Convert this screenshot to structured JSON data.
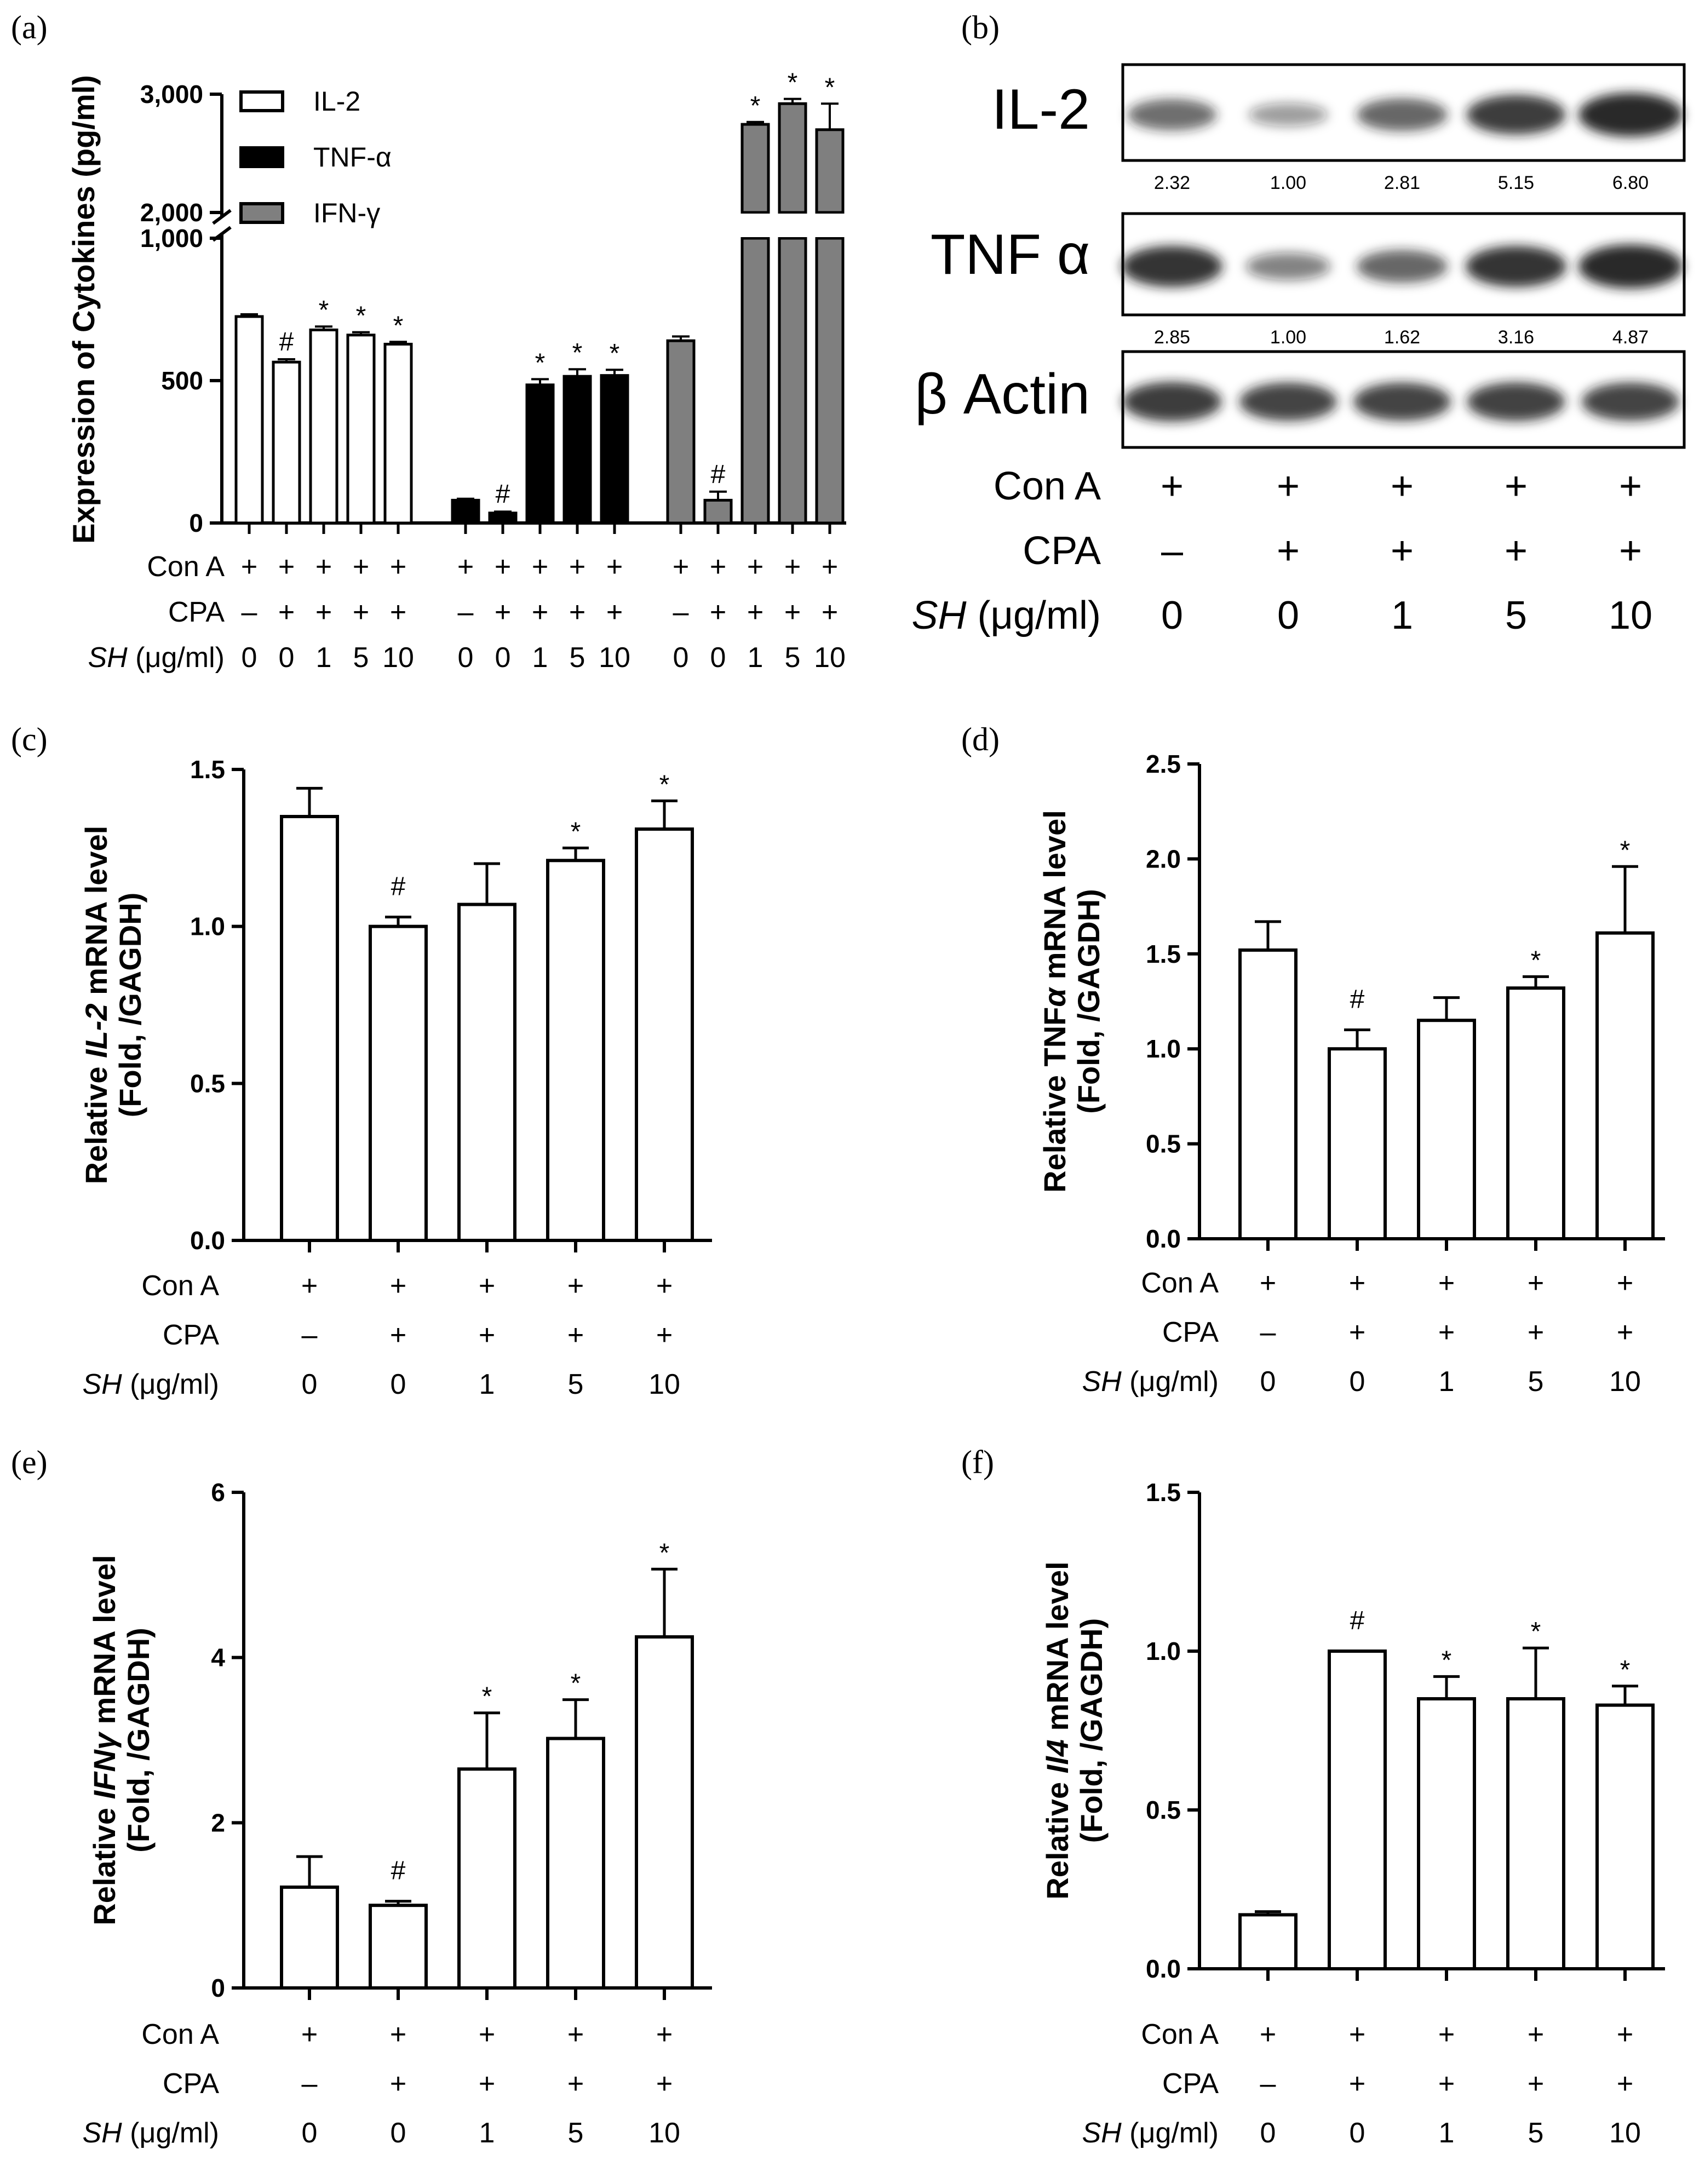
{
  "figure": {
    "colors": {
      "white_bar": "#ffffff",
      "tnf_bar": "#000000",
      "ifn_bar": "#7f7f7f",
      "stroke": "#000000",
      "band": "#1a1a1a"
    },
    "condition_labels": {
      "cona": "Con A",
      "cpa": "CPA",
      "sh_italic": "SH",
      "sh_unit": " (μg/ml)"
    },
    "condition_values": {
      "cona": [
        "+",
        "+",
        "+",
        "+",
        "+"
      ],
      "cpa": [
        "–",
        "+",
        "+",
        "+",
        "+"
      ],
      "sh": [
        "0",
        "0",
        "1",
        "5",
        "10"
      ]
    }
  },
  "panel_a": {
    "label": "(a)",
    "ylabel": "Expression of Cytokines (pg/ml)",
    "legend": [
      "IL-2",
      "TNF-α",
      "IFN-γ"
    ]
  },
  "panel_b": {
    "label": "(b)",
    "blots": [
      {
        "name": "IL-2",
        "values": [
          "2.32",
          "1.00",
          "2.81",
          "5.15",
          "6.80"
        ],
        "intensity": [
          0.55,
          0.25,
          0.6,
          0.85,
          1.0
        ]
      },
      {
        "name": "TNF α",
        "values": [
          "2.85",
          "1.00",
          "1.62",
          "3.16",
          "4.87"
        ],
        "intensity": [
          0.9,
          0.4,
          0.6,
          0.9,
          1.0
        ]
      },
      {
        "name": "β Actin",
        "values": [],
        "intensity": [
          0.85,
          0.8,
          0.8,
          0.82,
          0.8
        ]
      }
    ]
  },
  "panel_c": {
    "label": "(c)",
    "ylabel_pre": "Relative ",
    "ylabel_ital": "IL-2",
    "ylabel_post": " mRNA level",
    "ylabel2": "(Fold, /GAGDH)"
  },
  "panel_d": {
    "label": "(d)",
    "ylabel_pre": "Relative TNF",
    "ylabel_ital": "α",
    "ylabel_post": " mRNA level",
    "ylabel2": "(Fold, /GAGDH)"
  },
  "panel_e": {
    "label": "(e)",
    "ylabel_pre": "Relative ",
    "ylabel_ital": "IFNγ",
    "ylabel_post": " mRNA level",
    "ylabel2": "(Fold, /GAGDH)"
  },
  "panel_f": {
    "label": "(f)",
    "ylabel_pre": "Relative ",
    "ylabel_ital": "Il4",
    "ylabel_post": " mRNA level",
    "ylabel2": "(Fold, /GAGDH)"
  },
  "chart_data": [
    {
      "panel": "a",
      "type": "bar",
      "categories": [
        "0",
        "0",
        "1",
        "5",
        "10"
      ],
      "ylabel": "Expression of Cytokines (pg/ml)",
      "ylim_lower": [
        0,
        1000
      ],
      "ylim_upper": [
        2000,
        3000
      ],
      "yticks": [
        "0",
        "500",
        "1,000",
        "2,000",
        "3,000"
      ],
      "axis_break": true,
      "series": [
        {
          "name": "IL-2",
          "values": [
            725,
            565,
            678,
            660,
            628
          ],
          "errors": [
            8,
            10,
            12,
            10,
            8
          ],
          "marks": [
            "",
            "#",
            "*",
            "*",
            "*"
          ]
        },
        {
          "name": "TNF-α",
          "values": [
            80,
            35,
            485,
            515,
            518
          ],
          "errors": [
            5,
            5,
            20,
            25,
            20
          ],
          "marks": [
            "",
            "#",
            "*",
            "*",
            "*"
          ]
        },
        {
          "name": "IFN-γ",
          "values": [
            640,
            80,
            2745,
            2920,
            2700
          ],
          "errors": [
            15,
            30,
            20,
            40,
            220
          ],
          "marks": [
            "",
            "#",
            "*",
            "*",
            "*"
          ]
        }
      ]
    },
    {
      "panel": "c",
      "type": "bar",
      "categories": [
        "0",
        "0",
        "1",
        "5",
        "10"
      ],
      "values": [
        1.35,
        1.0,
        1.07,
        1.21,
        1.31
      ],
      "errors": [
        0.09,
        0.03,
        0.13,
        0.04,
        0.09
      ],
      "marks": [
        "",
        "#",
        "",
        "*",
        "*"
      ],
      "ylim": [
        0,
        1.5
      ],
      "yticks": [
        "0.0",
        "0.5",
        "1.0",
        "1.5"
      ]
    },
    {
      "panel": "d",
      "type": "bar",
      "categories": [
        "0",
        "0",
        "1",
        "5",
        "10"
      ],
      "values": [
        1.52,
        1.0,
        1.15,
        1.32,
        1.61
      ],
      "errors": [
        0.15,
        0.1,
        0.12,
        0.06,
        0.35
      ],
      "marks": [
        "",
        "#",
        "",
        "*",
        "*"
      ],
      "ylim": [
        0,
        2.5
      ],
      "yticks": [
        "0.0",
        "0.5",
        "1.0",
        "1.5",
        "2.0",
        "2.5"
      ]
    },
    {
      "panel": "e",
      "type": "bar",
      "categories": [
        "0",
        "0",
        "1",
        "5",
        "10"
      ],
      "values": [
        1.22,
        1.0,
        2.65,
        3.02,
        4.25
      ],
      "errors": [
        0.37,
        0.05,
        0.68,
        0.47,
        0.82
      ],
      "marks": [
        "",
        "#",
        "*",
        "*",
        "*"
      ],
      "ylim": [
        0,
        6
      ],
      "yticks": [
        "0",
        "2",
        "4",
        "6"
      ]
    },
    {
      "panel": "f",
      "type": "bar",
      "categories": [
        "0",
        "0",
        "1",
        "5",
        "10"
      ],
      "values": [
        0.17,
        1.0,
        0.85,
        0.85,
        0.83
      ],
      "errors": [
        0.01,
        0.0,
        0.07,
        0.16,
        0.06
      ],
      "marks": [
        "",
        "#",
        "*",
        "*",
        "*"
      ],
      "ylim": [
        0,
        1.5
      ],
      "yticks": [
        "0.0",
        "0.5",
        "1.0",
        "1.5"
      ]
    }
  ]
}
